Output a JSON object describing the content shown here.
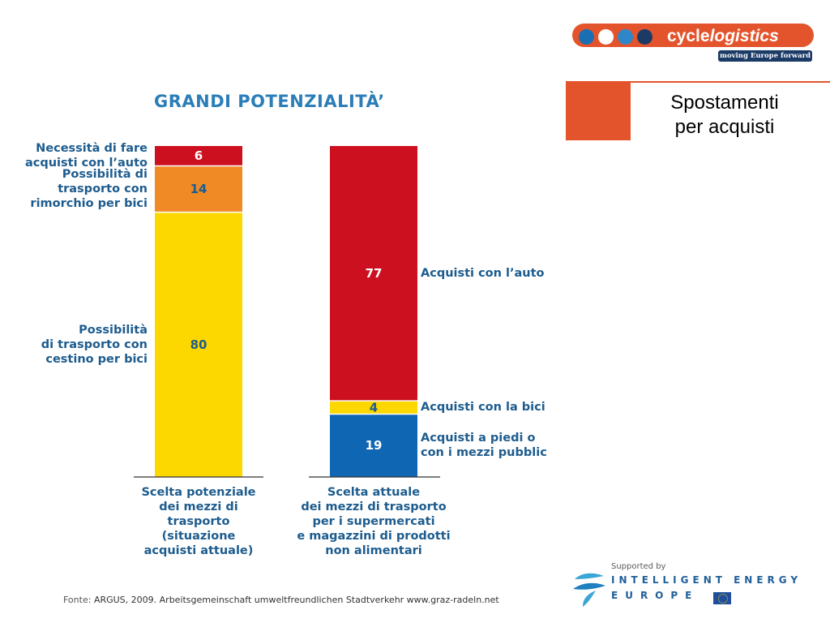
{
  "header": {
    "slide_title_line1": "Spostamenti",
    "slide_title_line2": "per acquisti",
    "logo_text_cycle": "cycle",
    "logo_text_logistics": "logistics",
    "logo_tagline": "moving Europe forward",
    "logo_dot_colors": [
      "#1a6fb4",
      "#ffffff",
      "#2f86c8",
      "#1b3a66"
    ],
    "accent_color": "#e4542c"
  },
  "chart_data": {
    "type": "bar",
    "stacked": true,
    "title": "GRANDI POTENZIALITÀ’",
    "ylim": [
      0,
      100
    ],
    "grid": false,
    "bars": [
      {
        "category": [
          "Scelta potenziale",
          "dei mezzi di",
          "trasporto",
          "(situazione",
          "acquisti attuale)"
        ],
        "segments": [
          {
            "value": 80,
            "color": "#fdd800",
            "value_color": "#1d5c8e",
            "label": [
              "Possibilità",
              "di trasporto con",
              "cestino per bici"
            ]
          },
          {
            "value": 14,
            "color": "#ef8a25",
            "value_color": "#1d5c8e",
            "label": [
              "Possibilità di",
              "trasporto con",
              "rimorchio per bici"
            ]
          },
          {
            "value": 6,
            "color": "#cc1020",
            "value_color": "#ffffff",
            "label": [
              "Necessità di fare",
              "acquisti con l’auto"
            ]
          }
        ]
      },
      {
        "category": [
          "Scelta attuale",
          "dei mezzi di trasporto",
          "per i supermercati",
          "e magazzini di prodotti",
          "non alimentari"
        ],
        "segments": [
          {
            "value": 19,
            "color": "#0f66b2",
            "value_color": "#ffffff",
            "label": [
              "Acquisti a piedi o",
              "con i mezzi pubblic"
            ]
          },
          {
            "value": 4,
            "color": "#fdd800",
            "value_color": "#1d5c8e",
            "label": [
              "Acquisti con la bici"
            ]
          },
          {
            "value": 77,
            "color": "#cc1020",
            "value_color": "#ffffff",
            "label": [
              "Acquisti con l’auto"
            ]
          }
        ]
      }
    ]
  },
  "footer": {
    "source_prefix": "Fonte:",
    "source_text": "ARGUS, 2009. Arbeitsgemeinschaft umweltfreundlichen Stadtverkehr www.graz-radeln.net",
    "iee_supported": "Supported by",
    "iee_line1": "INTELLIGENT ENERGY",
    "iee_line2": "EUROPE"
  }
}
